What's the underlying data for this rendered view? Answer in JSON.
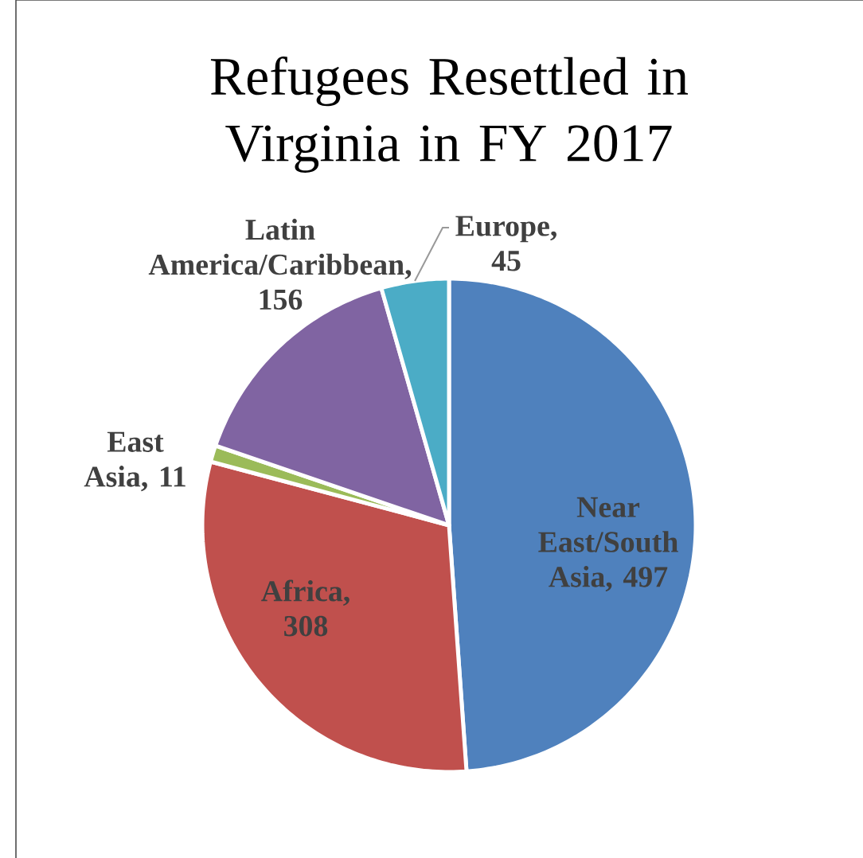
{
  "chart_data": {
    "type": "pie",
    "title": "Refugees Resettled in Virginia in FY 2017",
    "categories": [
      "Near East/South Asia",
      "Africa",
      "East Asia",
      "Latin America/Caribbean",
      "Europe"
    ],
    "values": [
      497,
      308,
      11,
      156,
      45
    ],
    "value_labels": [
      ", 497",
      ", 308",
      ", 11",
      ", 156",
      ", 45"
    ],
    "colors": [
      "#4f81bd",
      "#c0504d",
      "#9bbb59",
      "#8064a2",
      "#4bacc6"
    ]
  }
}
